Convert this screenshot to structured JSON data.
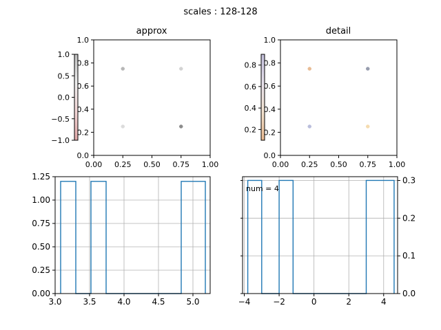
{
  "figure": {
    "suptitle": "scales : 128-128"
  },
  "chart_data": [
    {
      "id": "approx",
      "type": "scatter",
      "title": "approx",
      "xlim": [
        0,
        1
      ],
      "ylim": [
        0,
        1
      ],
      "xticks": [
        "0.00",
        "0.25",
        "0.50",
        "0.75",
        "1.00"
      ],
      "yticks": [
        "0.0",
        "0.2",
        "0.4",
        "0.6",
        "0.8",
        "1.0"
      ],
      "points": [
        {
          "x": 0.25,
          "y": 0.75,
          "color": "#b0b0b0"
        },
        {
          "x": 0.75,
          "y": 0.75,
          "color": "#cfcfcf"
        },
        {
          "x": 0.25,
          "y": 0.25,
          "color": "#d9d9d9"
        },
        {
          "x": 0.75,
          "y": 0.25,
          "color": "#808080"
        }
      ],
      "colorbar": {
        "ticks": [
          "1.0",
          "0.5",
          "0.0",
          "−0.5",
          "−1.0"
        ],
        "gradient": [
          "#bdbdbd",
          "#eeeeee",
          "#f2d6d6",
          "#e0a8a8"
        ]
      }
    },
    {
      "id": "detail",
      "type": "scatter",
      "title": "detail",
      "xlim": [
        0,
        1
      ],
      "ylim": [
        0,
        1
      ],
      "xticks": [
        "0.00",
        "0.25",
        "0.50",
        "0.75",
        "1.00"
      ],
      "yticks": [
        "0.0",
        "0.2",
        "0.4",
        "0.6",
        "0.8",
        "1.0"
      ],
      "points": [
        {
          "x": 0.25,
          "y": 0.75,
          "color": "#e6b58a"
        },
        {
          "x": 0.75,
          "y": 0.75,
          "color": "#8c93a6"
        },
        {
          "x": 0.25,
          "y": 0.25,
          "color": "#b3b8d9"
        },
        {
          "x": 0.75,
          "y": 0.25,
          "color": "#f5d9a8"
        }
      ],
      "colorbar": {
        "ticks": [
          "0.8",
          "0.6",
          "0.4",
          "0.2"
        ],
        "gradient": [
          "#c0bcd8",
          "#e6e0ea",
          "#f2e2d0",
          "#e8b88e"
        ]
      }
    },
    {
      "id": "hist-left",
      "type": "bar",
      "xlim": [
        3.0,
        5.25
      ],
      "ylim": [
        0,
        1.25
      ],
      "xticks": [
        3.0,
        3.5,
        4.0,
        4.5,
        5.0
      ],
      "xtick_labels": [
        "3.0",
        "3.5",
        "4.0",
        "4.5",
        "5.0"
      ],
      "yticks": [
        0,
        0.25,
        0.5,
        0.75,
        1.0,
        1.25
      ],
      "ytick_labels": [
        "0.00",
        "0.25",
        "0.50",
        "0.75",
        "1.00",
        "1.25"
      ],
      "bars": [
        {
          "x0": 3.08,
          "x1": 3.3,
          "h": 1.2
        },
        {
          "x0": 3.3,
          "x1": 3.52,
          "h": 0
        },
        {
          "x0": 3.52,
          "x1": 3.74,
          "h": 1.2
        },
        {
          "x0": 3.74,
          "x1": 4.83,
          "h": 0
        },
        {
          "x0": 4.83,
          "x1": 5.05,
          "h": 1.2
        },
        {
          "x0": 5.05,
          "x1": 5.18,
          "h": 1.2
        }
      ],
      "grid": true
    },
    {
      "id": "hist-right",
      "type": "bar",
      "xlim": [
        -4.1,
        4.8
      ],
      "ylim": [
        0,
        0.31
      ],
      "xticks": [
        -4,
        -2,
        0,
        2,
        4
      ],
      "xtick_labels": [
        "−4",
        "−2",
        "0",
        "2",
        "4"
      ],
      "yticks": [
        0,
        0.1,
        0.2,
        0.3
      ],
      "ytick_labels": [
        "0.0",
        "0.1",
        "0.2",
        "0.3"
      ],
      "annotation": "num = 4",
      "bars": [
        {
          "x0": -3.8,
          "x1": -3.0,
          "h": 0.3
        },
        {
          "x0": -3.0,
          "x1": -2.0,
          "h": 0
        },
        {
          "x0": -2.0,
          "x1": -1.2,
          "h": 0.3
        },
        {
          "x0": -1.2,
          "x1": 3.0,
          "h": 0
        },
        {
          "x0": 3.0,
          "x1": 4.6,
          "h": 0.3
        }
      ],
      "grid": true
    }
  ]
}
